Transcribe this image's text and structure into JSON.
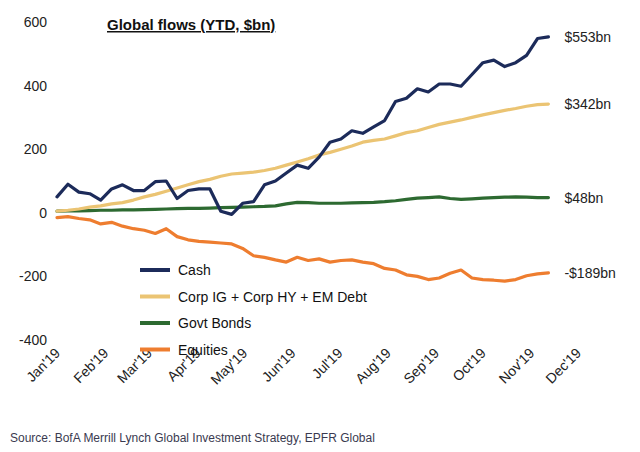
{
  "chart_data": {
    "type": "line",
    "title": "Global flows (YTD, $bn)",
    "source": "Source:  BofA Merrill Lynch Global Investment Strategy, EPFR Global",
    "x": [
      0,
      1,
      2,
      3,
      4,
      5,
      6,
      7,
      8,
      9,
      10,
      11,
      12,
      13,
      14,
      15,
      16,
      17,
      18,
      19,
      20,
      21,
      22,
      23,
      24,
      25,
      26,
      27,
      28,
      29,
      30,
      31,
      32,
      33,
      34,
      35,
      36,
      37,
      38,
      39,
      40,
      41,
      42,
      43,
      44,
      45
    ],
    "xlim": [
      0,
      47.71
    ],
    "xticks": [
      {
        "value": 0,
        "label": "Jan'19"
      },
      {
        "value": 4.43,
        "label": "Feb'19"
      },
      {
        "value": 8.43,
        "label": "Mar'19"
      },
      {
        "value": 12.86,
        "label": "Apr'19"
      },
      {
        "value": 17.14,
        "label": "May'19"
      },
      {
        "value": 21.57,
        "label": "Jun'19"
      },
      {
        "value": 25.86,
        "label": "Jul'19"
      },
      {
        "value": 30.29,
        "label": "Aug'19"
      },
      {
        "value": 34.71,
        "label": "Sep'19"
      },
      {
        "value": 39,
        "label": "Oct'19"
      },
      {
        "value": 43.43,
        "label": "Nov'19"
      },
      {
        "value": 47.71,
        "label": "Dec'19"
      }
    ],
    "ylim": [
      -400,
      600
    ],
    "yticks": [
      -400,
      -200,
      0,
      200,
      400,
      600
    ],
    "grid": false,
    "legend": "lower left",
    "series": [
      {
        "name": "Cash",
        "color": "#1c2b5a",
        "values": [
          50,
          90,
          65,
          60,
          40,
          75,
          88,
          70,
          70,
          98,
          100,
          45,
          70,
          75,
          75,
          5,
          -5,
          30,
          35,
          88,
          100,
          125,
          150,
          140,
          175,
          222,
          232,
          258,
          250,
          270,
          290,
          350,
          360,
          390,
          380,
          405,
          405,
          398,
          435,
          472,
          480,
          460,
          472,
          495,
          548,
          553
        ]
      },
      {
        "name": "Corp IG + Corp HY + EM Debt",
        "color": "#ebc473",
        "values": [
          5,
          8,
          12,
          18,
          22,
          28,
          32,
          40,
          50,
          58,
          68,
          78,
          88,
          98,
          105,
          115,
          122,
          125,
          128,
          133,
          140,
          150,
          160,
          170,
          182,
          190,
          200,
          210,
          222,
          228,
          232,
          242,
          252,
          258,
          268,
          278,
          285,
          292,
          300,
          308,
          315,
          322,
          328,
          335,
          340,
          342
        ]
      },
      {
        "name": "Govt Bonds",
        "color": "#2d6a31",
        "values": [
          5,
          6,
          6,
          7,
          8,
          8,
          9,
          9,
          10,
          11,
          12,
          13,
          14,
          14,
          15,
          16,
          17,
          18,
          19,
          20,
          22,
          28,
          33,
          32,
          30,
          30,
          30,
          31,
          32,
          33,
          35,
          38,
          42,
          46,
          48,
          50,
          45,
          42,
          44,
          46,
          48,
          49,
          50,
          49,
          48,
          48
        ]
      },
      {
        "name": "Equities",
        "color": "#ee7d2f",
        "values": [
          -15,
          -12,
          -18,
          -22,
          -35,
          -30,
          -42,
          -50,
          -55,
          -65,
          -50,
          -75,
          -85,
          -90,
          -92,
          -95,
          -98,
          -112,
          -135,
          -140,
          -148,
          -155,
          -140,
          -150,
          -145,
          -155,
          -150,
          -148,
          -155,
          -160,
          -175,
          -180,
          -195,
          -200,
          -210,
          -205,
          -190,
          -180,
          -205,
          -210,
          -212,
          -215,
          -210,
          -198,
          -192,
          -189
        ]
      }
    ],
    "annotations": [
      {
        "text": "$553bn",
        "value": 553
      },
      {
        "text": "$342bn",
        "value": 342
      },
      {
        "text": "$48bn",
        "value": 48
      },
      {
        "text": "-$189bn",
        "value": -189
      }
    ]
  }
}
